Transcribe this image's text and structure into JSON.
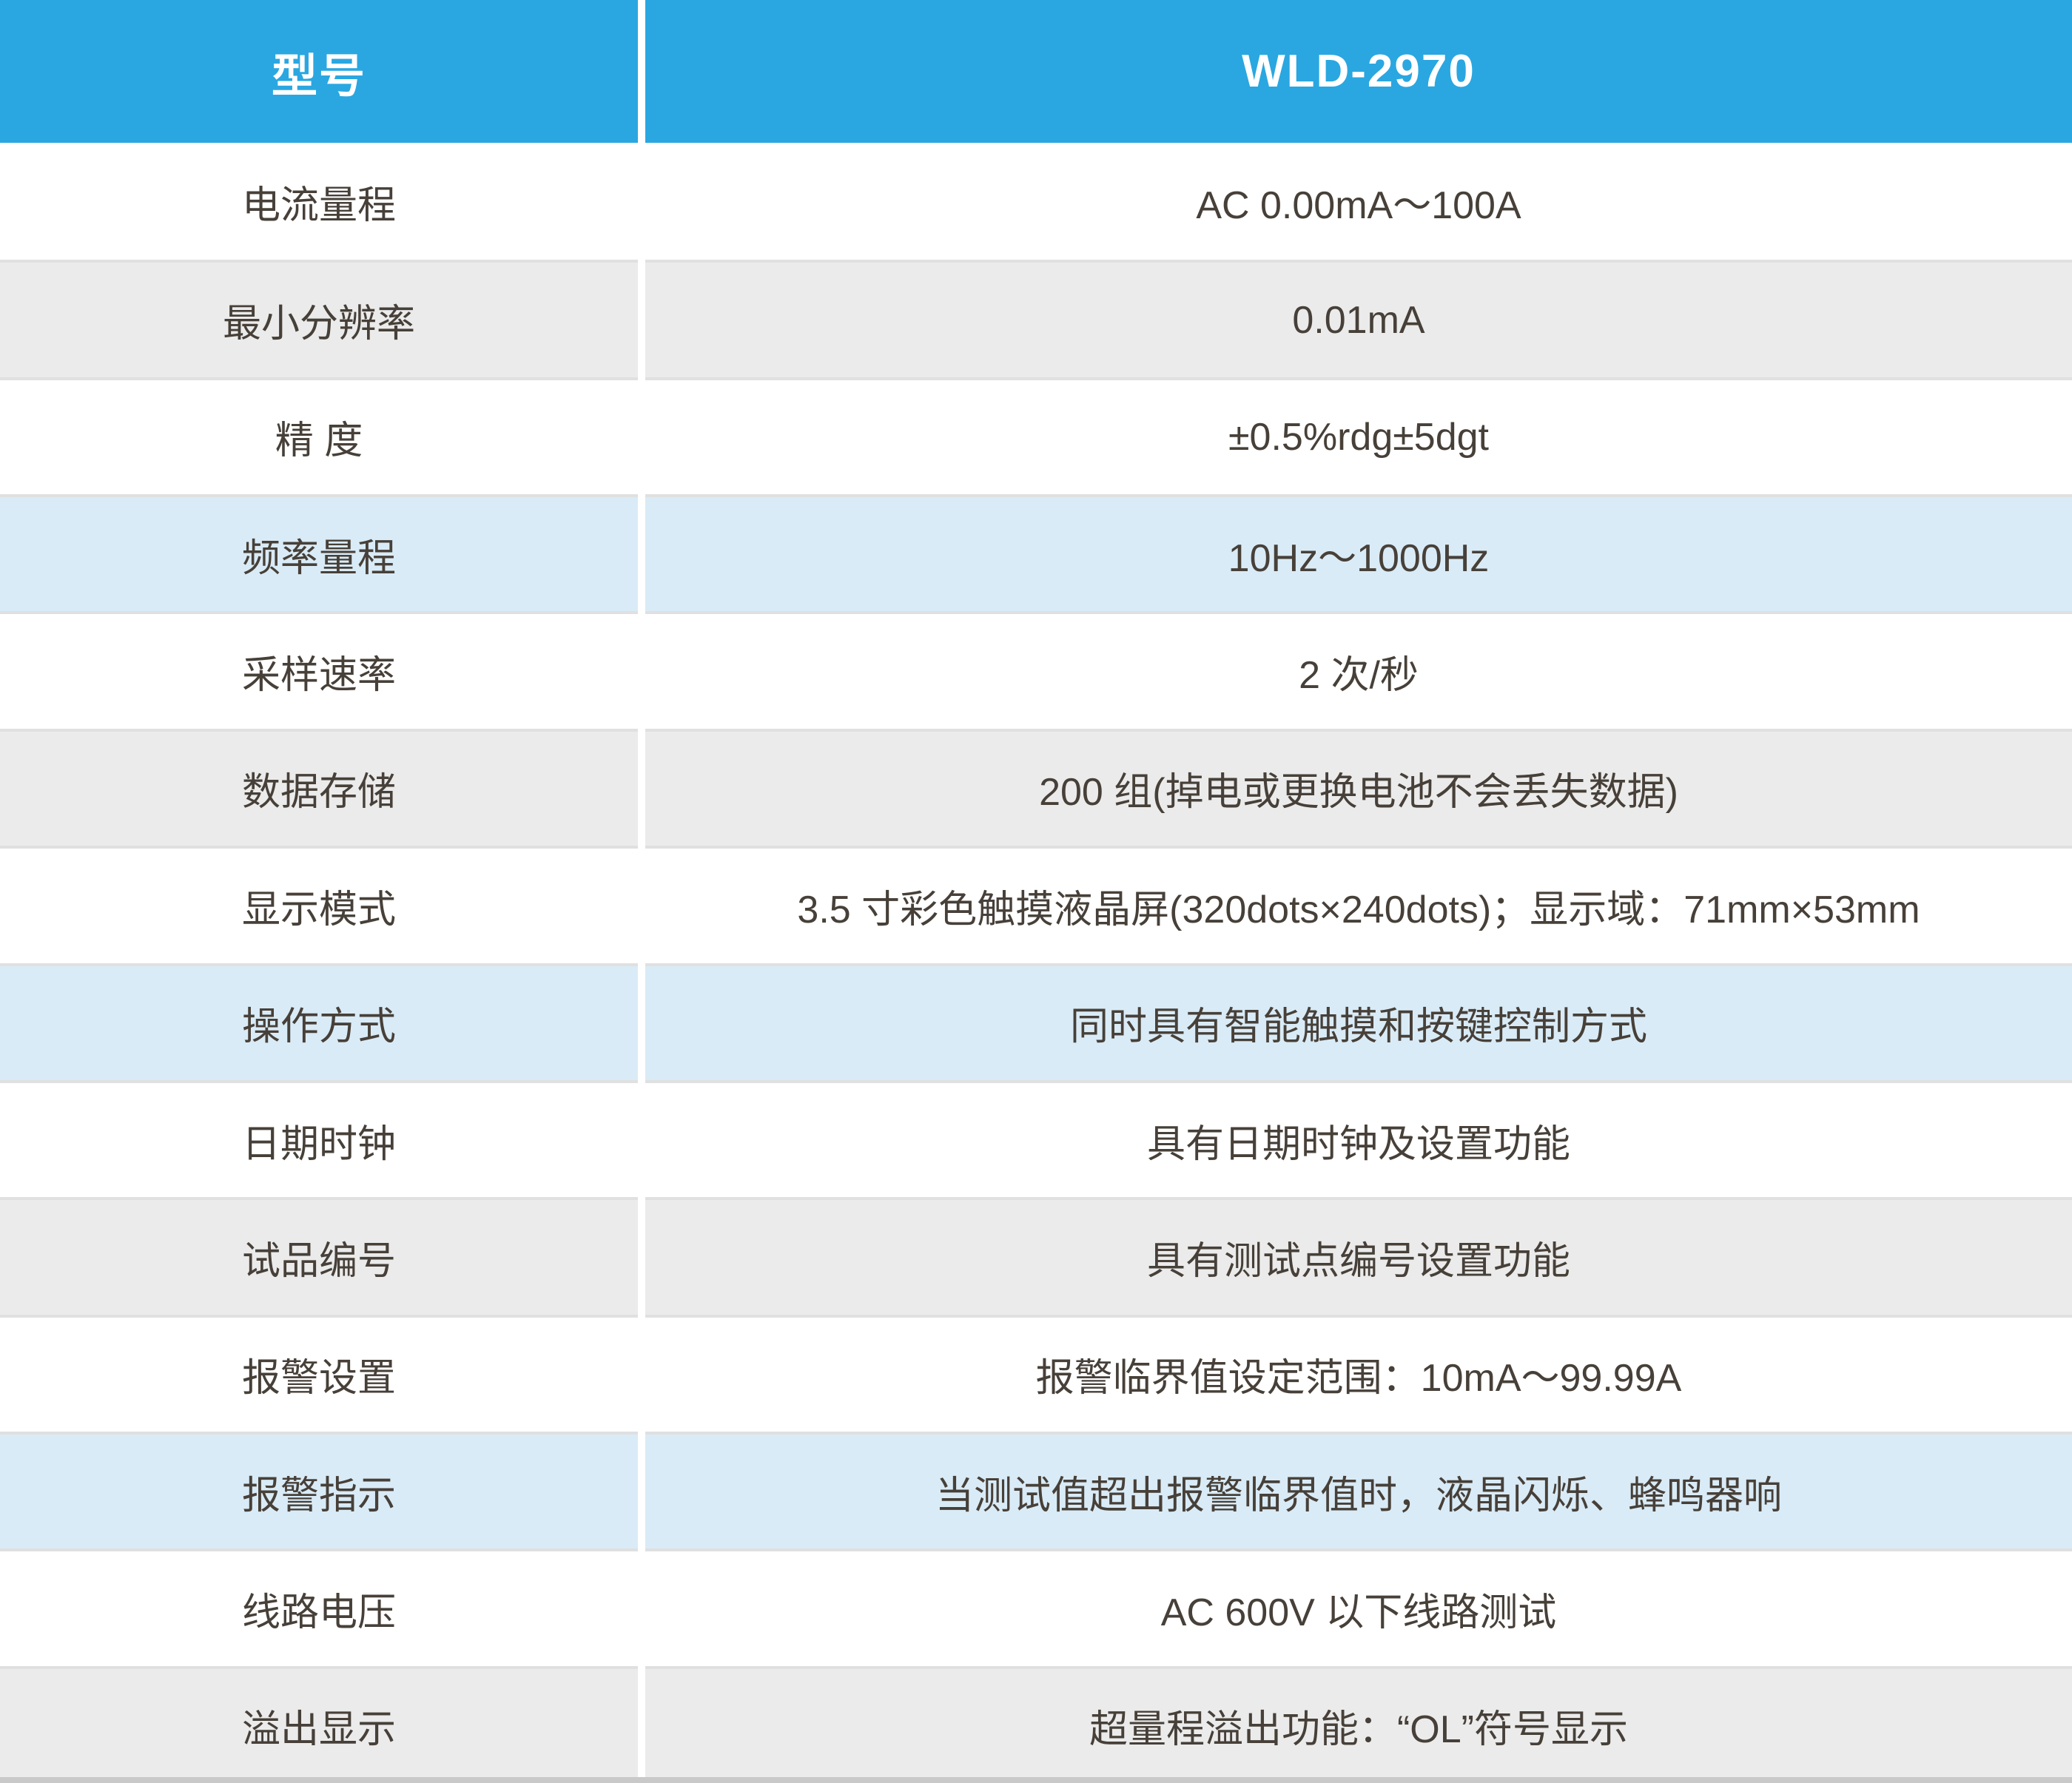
{
  "table": {
    "header": {
      "label_column_title": "型号",
      "model": "WLD-2970"
    },
    "rows": [
      {
        "label": "电流量程",
        "value": "AC 0.00mA～100A",
        "variant": "white"
      },
      {
        "label": "最小分辨率",
        "value": "0.01mA",
        "variant": "gray"
      },
      {
        "label": "精 度",
        "value": "±0.5%rdg±5dgt",
        "variant": "white"
      },
      {
        "label": "频率量程",
        "value": "10Hz～1000Hz",
        "variant": "blue"
      },
      {
        "label": "采样速率",
        "value": "2 次/秒",
        "variant": "white"
      },
      {
        "label": "数据存储",
        "value": "200 组(掉电或更换电池不会丢失数据)",
        "variant": "gray"
      },
      {
        "label": "显示模式",
        "value": "3.5 寸彩色触摸液晶屏(320dots×240dots)；显示域：71mm×53mm",
        "variant": "white"
      },
      {
        "label": "操作方式",
        "value": "同时具有智能触摸和按键控制方式",
        "variant": "blue"
      },
      {
        "label": "日期时钟",
        "value": "具有日期时钟及设置功能",
        "variant": "white"
      },
      {
        "label": "试品编号",
        "value": "具有测试点编号设置功能",
        "variant": "gray"
      },
      {
        "label": "报警设置",
        "value": "报警临界值设定范围：10mA～99.99A",
        "variant": "white"
      },
      {
        "label": "报警指示",
        "value": "当测试值超出报警临界值时，液晶闪烁、蜂鸣器响",
        "variant": "blue"
      },
      {
        "label": "线路电压",
        "value": "AC 600V 以下线路测试",
        "variant": "white"
      },
      {
        "label": "溢出显示",
        "value": "超量程溢出功能：“OL”符号显示",
        "variant": "gray"
      }
    ],
    "colors": {
      "header_bg": "#2aa7e1",
      "header_text": "#ffffff",
      "row_white": "#ffffff",
      "row_gray": "#ebebeb",
      "row_blue": "#d9ebf6",
      "divider": "#e0e0e0",
      "bottom_bar": "#c9c9c9",
      "text": "#474039"
    }
  }
}
